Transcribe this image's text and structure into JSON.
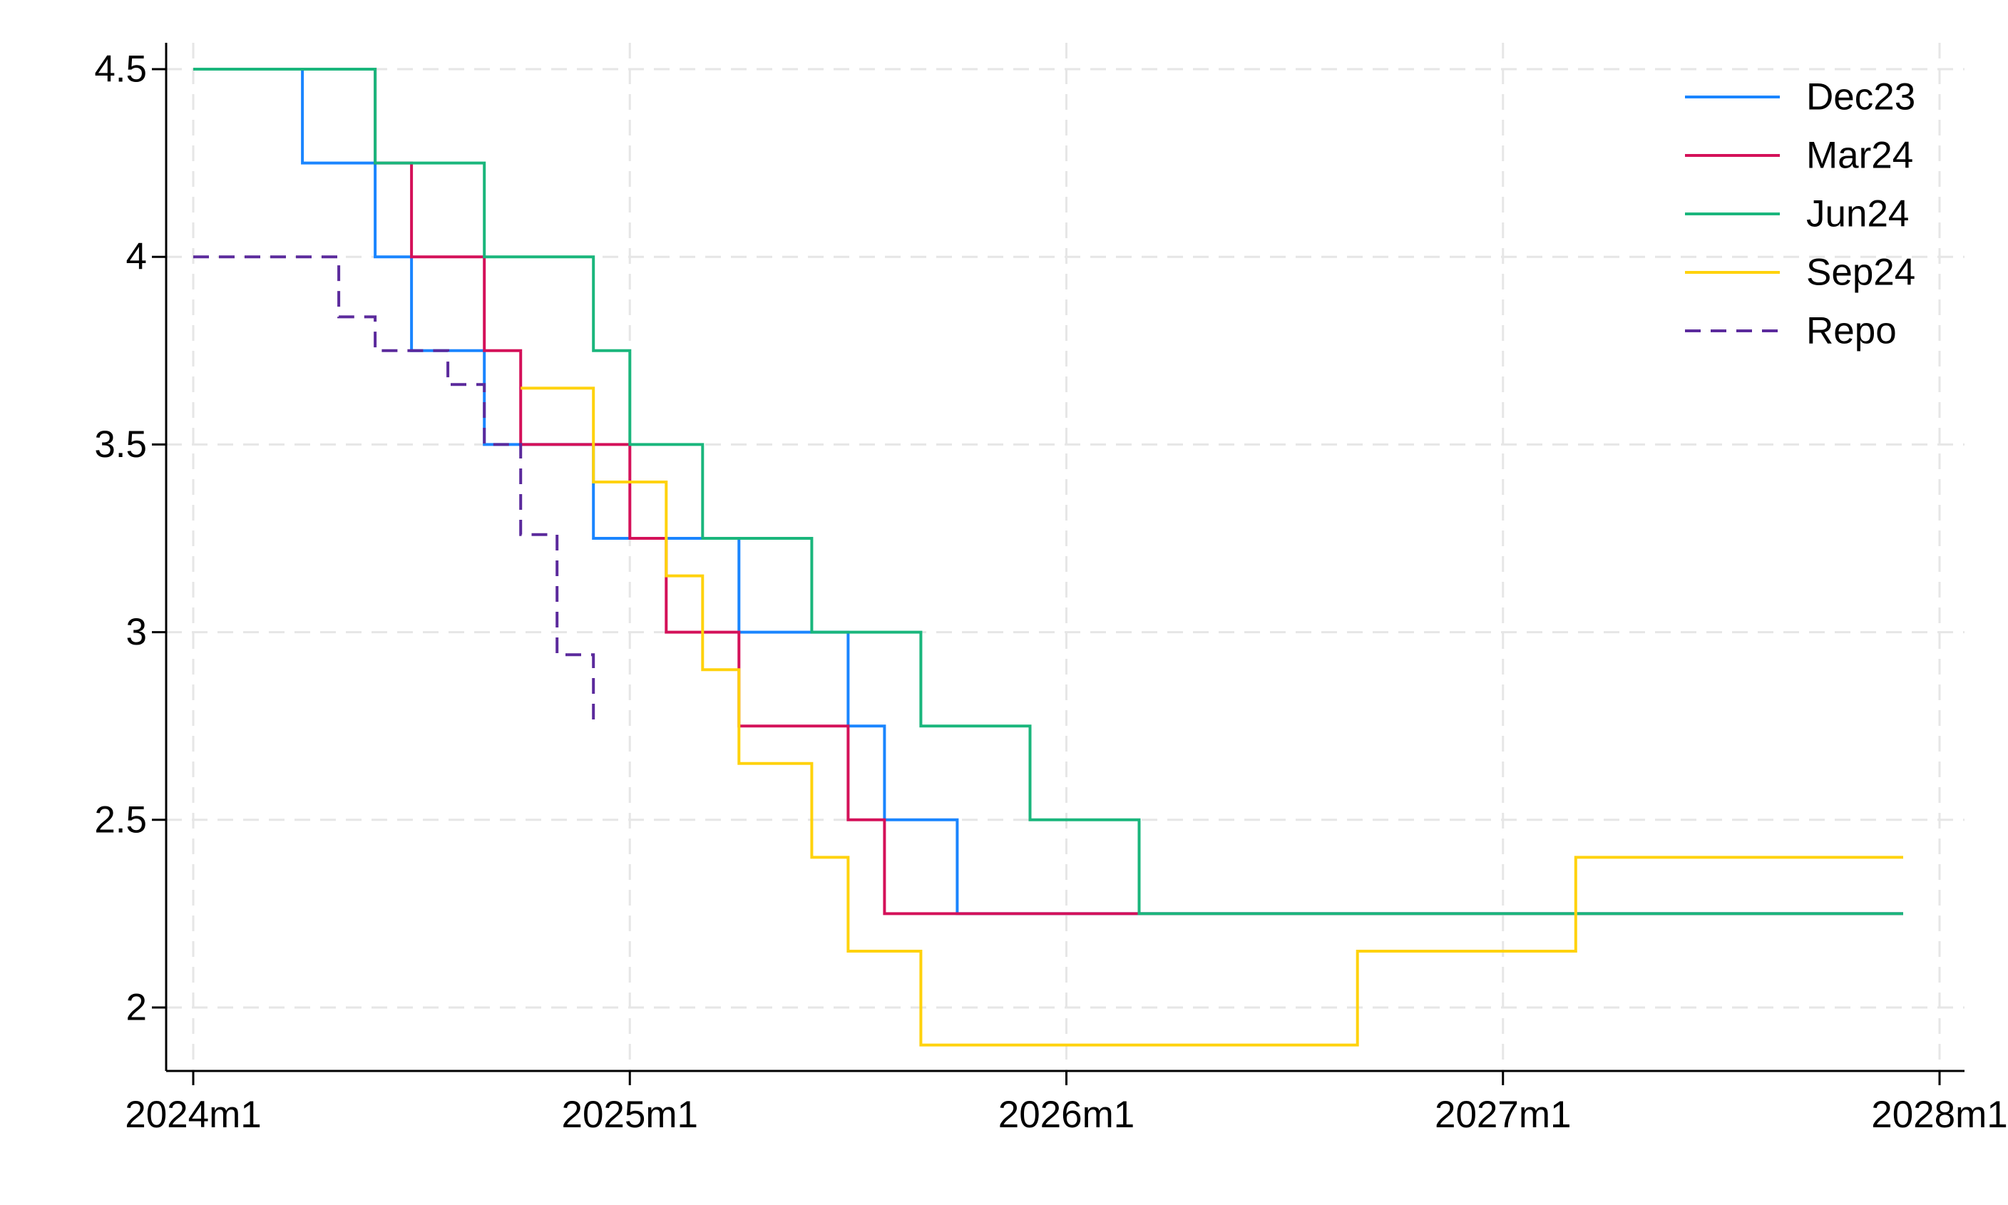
{
  "chart_data": {
    "type": "line",
    "step": true,
    "title": "",
    "xlabel": "",
    "ylabel": "",
    "x_axis": {
      "ticks": [
        "2024m1",
        "2025m1",
        "2026m1",
        "2027m1",
        "2028m1"
      ],
      "range": [
        "2024m1",
        "2028m1"
      ]
    },
    "y_axis": {
      "ticks": [
        "2",
        "2.5",
        "3",
        "3.5",
        "4",
        "4.5"
      ],
      "ylim": [
        1.85,
        4.55
      ]
    },
    "grid": true,
    "legend_position": "top-right",
    "series": [
      {
        "name": "Dec23",
        "color": "#1a85ff",
        "dash": "solid",
        "points": [
          [
            "2024m1",
            4.5
          ],
          [
            "2024m4",
            4.25
          ],
          [
            "2024m6",
            4.0
          ],
          [
            "2024m7",
            3.75
          ],
          [
            "2024m9",
            3.5
          ],
          [
            "2024m12",
            3.25
          ],
          [
            "2025m4",
            3.0
          ],
          [
            "2025m7",
            2.75
          ],
          [
            "2025m8",
            2.5
          ],
          [
            "2025m10",
            2.25
          ],
          [
            "2027m12",
            2.25
          ]
        ]
      },
      {
        "name": "Mar24",
        "color": "#d41159",
        "dash": "solid",
        "points": [
          [
            "2024m1",
            4.5
          ],
          [
            "2024m6",
            4.25
          ],
          [
            "2024m7",
            4.0
          ],
          [
            "2024m9",
            3.75
          ],
          [
            "2024m10",
            3.5
          ],
          [
            "2025m1",
            3.25
          ],
          [
            "2025m2",
            3.0
          ],
          [
            "2025m4",
            2.75
          ],
          [
            "2025m7",
            2.5
          ],
          [
            "2025m8",
            2.25
          ],
          [
            "2027m12",
            2.25
          ]
        ]
      },
      {
        "name": "Jun24",
        "color": "#1ab67c",
        "dash": "solid",
        "points": [
          [
            "2024m1",
            4.5
          ],
          [
            "2024m6",
            4.25
          ],
          [
            "2024m9",
            4.0
          ],
          [
            "2024m12",
            3.75
          ],
          [
            "2025m1",
            3.5
          ],
          [
            "2025m3",
            3.25
          ],
          [
            "2025m6",
            3.0
          ],
          [
            "2025m9",
            2.75
          ],
          [
            "2025m12",
            2.5
          ],
          [
            "2026m3",
            2.25
          ],
          [
            "2027m12",
            2.25
          ]
        ]
      },
      {
        "name": "Sep24",
        "color": "#ffd20c",
        "dash": "solid",
        "points": [
          [
            "2024m10",
            3.65
          ],
          [
            "2024m12",
            3.4
          ],
          [
            "2025m2",
            3.15
          ],
          [
            "2025m3",
            2.9
          ],
          [
            "2025m4",
            2.65
          ],
          [
            "2025m6",
            2.4
          ],
          [
            "2025m7",
            2.15
          ],
          [
            "2025m9",
            1.9
          ],
          [
            "2026m9",
            2.15
          ],
          [
            "2027m3",
            2.4
          ],
          [
            "2027m12",
            2.4
          ]
        ]
      },
      {
        "name": "Repo",
        "color": "#5b2a9c",
        "dash": "dashed",
        "points": [
          [
            "2024m1",
            4.0
          ],
          [
            "2024m5",
            3.84
          ],
          [
            "2024m6",
            3.75
          ],
          [
            "2024m8",
            3.66
          ],
          [
            "2024m9",
            3.5
          ],
          [
            "2024m10",
            3.26
          ],
          [
            "2024m11",
            2.94
          ],
          [
            "2024m12",
            2.75
          ]
        ]
      }
    ]
  }
}
